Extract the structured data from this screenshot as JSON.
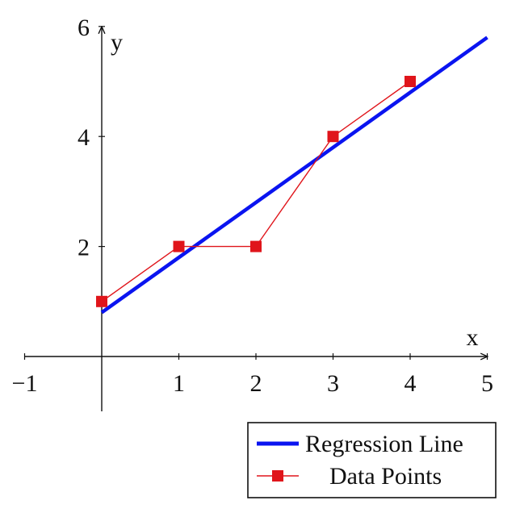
{
  "chart_data": {
    "type": "line",
    "xlabel": "x",
    "ylabel": "y",
    "xlim": [
      -1,
      5
    ],
    "ylim": [
      -1,
      6
    ],
    "x_ticks": [
      -1,
      1,
      2,
      3,
      4,
      5
    ],
    "x_tick_labels": [
      "−1",
      "1",
      "2",
      "3",
      "4",
      "5"
    ],
    "y_ticks": [
      2,
      4,
      6
    ],
    "y_tick_labels": [
      "2",
      "4",
      "6"
    ],
    "grid": false,
    "legend_position": "bottom-right",
    "series": [
      {
        "name": "Regression Line",
        "kind": "line",
        "color": "#0a14f0",
        "x": [
          0,
          5
        ],
        "y": [
          0.8,
          5.8
        ]
      },
      {
        "name": "Data Points",
        "kind": "line-marker",
        "marker": "square",
        "color": "#e0151b",
        "x": [
          0,
          1,
          2,
          3,
          4
        ],
        "y": [
          1,
          2,
          2,
          4,
          5
        ]
      }
    ]
  }
}
